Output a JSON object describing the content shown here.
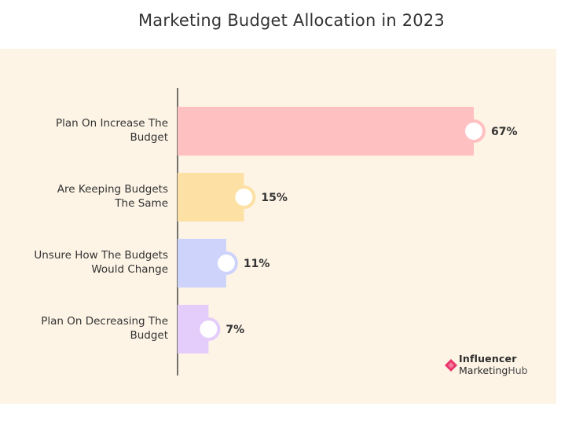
{
  "chart_data": {
    "type": "bar",
    "orientation": "horizontal",
    "title": "Marketing Budget Allocation in 2023",
    "categories": [
      "Plan On Increase The Budget",
      "Are Keeping Budgets The Same",
      "Unsure How The Budgets Would Change",
      "Plan On Decreasing The Budget"
    ],
    "category_lines": [
      [
        "Plan On Increase The",
        "Budget"
      ],
      [
        "Are Keeping Budgets",
        "The Same"
      ],
      [
        "Unsure How The Budgets",
        "Would Change"
      ],
      [
        "Plan On Decreasing The",
        "Budget"
      ]
    ],
    "values": [
      67,
      15,
      11,
      7
    ],
    "value_labels": [
      "67%",
      "15%",
      "11%",
      "7%"
    ],
    "colors": [
      "#ffc0c1",
      "#fde0a4",
      "#cdd3fa",
      "#e5cdfb"
    ],
    "ring_colors": [
      "#ffc0c1",
      "#fde0a4",
      "#cdd3fa",
      "#e5cdfb"
    ],
    "xlim": [
      0,
      67
    ],
    "grid": false,
    "legend": "none"
  },
  "logo": {
    "line1": "Influencer",
    "line2a": "Marketing",
    "line2b": "Hub",
    "color": "#e8356a"
  }
}
